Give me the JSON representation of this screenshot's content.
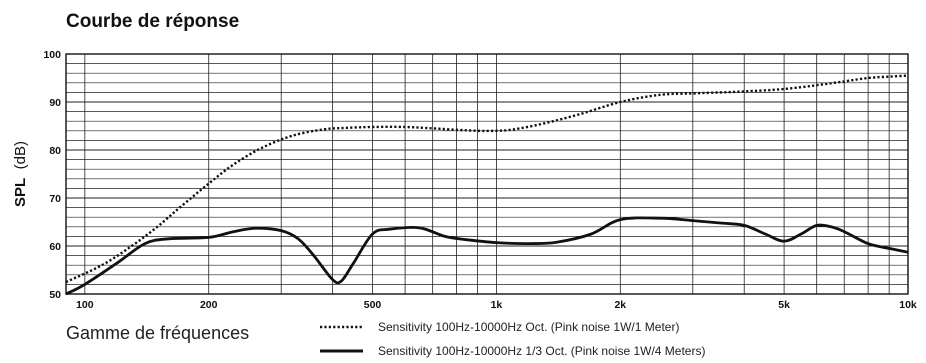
{
  "chart_data": {
    "type": "line",
    "title": "Courbe de réponse",
    "ylabel_bold": "SPL",
    "ylabel_unit": "(dB)",
    "xlabel": "Gamme de fréquences",
    "x_scale": "log",
    "xlim": [
      90,
      10000
    ],
    "ylim": [
      50,
      100
    ],
    "grid": true,
    "legend_position": "bottom",
    "y_ticks": [
      {
        "value": 50,
        "label": "50"
      },
      {
        "value": 60,
        "label": "60"
      },
      {
        "value": 70,
        "label": "70"
      },
      {
        "value": 80,
        "label": "80"
      },
      {
        "value": 90,
        "label": "90"
      },
      {
        "value": 100,
        "label": "100"
      }
    ],
    "x_ticks": [
      {
        "value": 100,
        "label": "100"
      },
      {
        "value": 200,
        "label": "200"
      },
      {
        "value": 500,
        "label": "500"
      },
      {
        "value": 1000,
        "label": "1k"
      },
      {
        "value": 2000,
        "label": "2k"
      },
      {
        "value": 5000,
        "label": "5k"
      },
      {
        "value": 10000,
        "label": "10k"
      }
    ],
    "series": [
      {
        "name": "Sensitivity 100Hz-10000Hz Oct. (Pink noise 1W/1 Meter)",
        "style": "dotted",
        "x": [
          90,
          110,
          130,
          150,
          170,
          200,
          230,
          270,
          320,
          380,
          430,
          500,
          600,
          700,
          800,
          900,
          1000,
          1100,
          1300,
          1600,
          2000,
          2500,
          3000,
          3500,
          4000,
          5000,
          6000,
          7000,
          8000,
          9000,
          10000
        ],
        "y": [
          52.5,
          56,
          60,
          64,
          68,
          73,
          77,
          80.5,
          83,
          84.3,
          84.6,
          84.8,
          84.8,
          84.5,
          84.2,
          84,
          84,
          84.3,
          85.5,
          87.5,
          90,
          91.5,
          91.8,
          92,
          92.2,
          92.7,
          93.5,
          94.3,
          95,
          95.3,
          95.5
        ]
      },
      {
        "name": "Sensitivity 100Hz-10000Hz 1/3 Oct. (Pink noise 1W/4 Meters)",
        "style": "solid",
        "x": [
          90,
          100,
          120,
          140,
          160,
          200,
          230,
          260,
          300,
          330,
          360,
          400,
          420,
          450,
          500,
          550,
          650,
          750,
          850,
          1000,
          1200,
          1400,
          1700,
          2000,
          2500,
          3000,
          3500,
          4000,
          4500,
          5000,
          5500,
          6000,
          6500,
          7000,
          8000,
          9000,
          10000
        ],
        "y": [
          50,
          52,
          56.5,
          60.5,
          61.5,
          61.8,
          63,
          63.7,
          63.2,
          61.5,
          58,
          53,
          52.7,
          56.5,
          62.5,
          63.5,
          63.8,
          62,
          61.3,
          60.7,
          60.5,
          60.8,
          62.5,
          65.5,
          65.8,
          65.3,
          64.8,
          64.3,
          62.5,
          61,
          62.5,
          64.3,
          64,
          63,
          60.5,
          59.5,
          58.7
        ]
      }
    ]
  }
}
